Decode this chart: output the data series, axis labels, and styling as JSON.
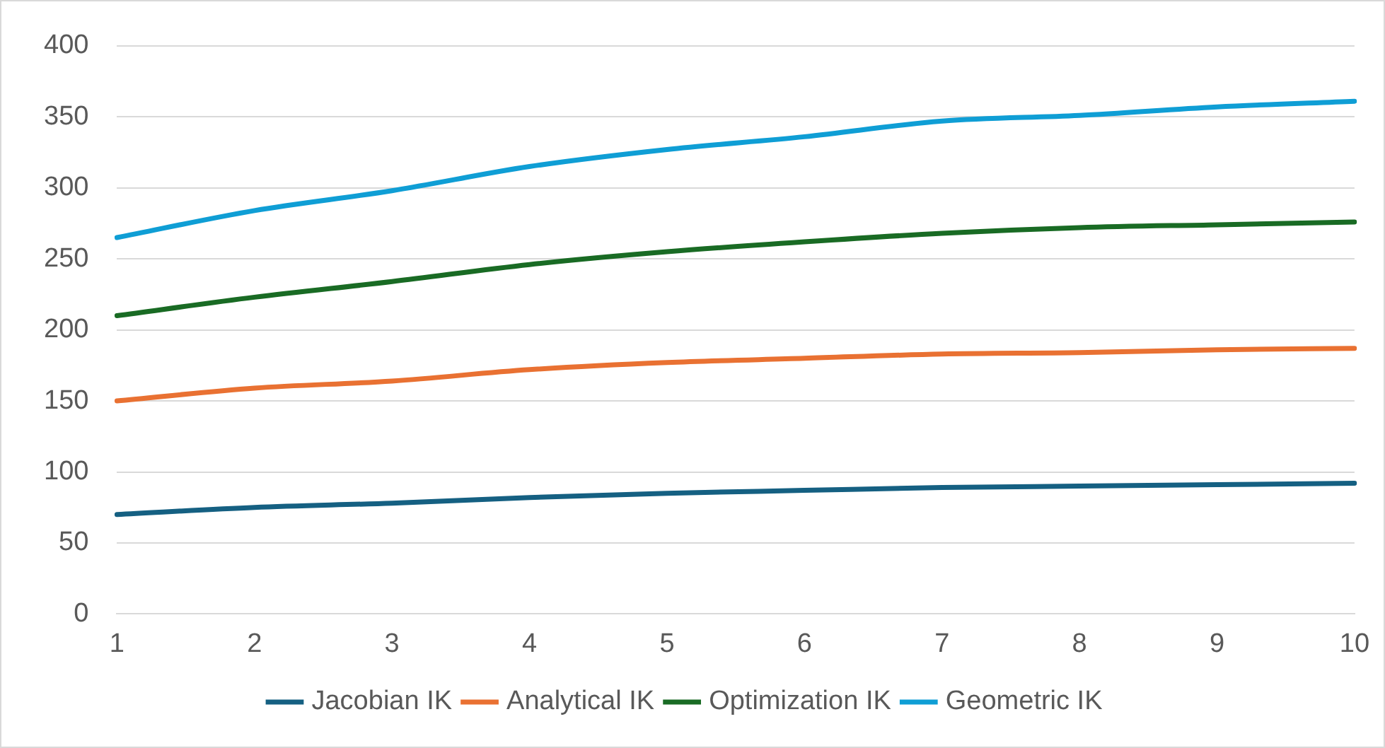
{
  "chart_data": {
    "type": "line",
    "categories": [
      "1",
      "2",
      "3",
      "4",
      "5",
      "6",
      "7",
      "8",
      "9",
      "10"
    ],
    "series": [
      {
        "name": "Jacobian IK",
        "color": "#156082",
        "values": [
          70,
          75,
          78,
          82,
          85,
          87,
          89,
          90,
          91,
          92
        ]
      },
      {
        "name": "Analytical IK",
        "color": "#e97132",
        "values": [
          150,
          159,
          164,
          172,
          177,
          180,
          183,
          184,
          186,
          187
        ]
      },
      {
        "name": "Optimization IK",
        "color": "#196b24",
        "values": [
          210,
          223,
          234,
          246,
          255,
          262,
          268,
          272,
          274,
          276
        ]
      },
      {
        "name": "Geometric IK",
        "color": "#0f9ed5",
        "values": [
          265,
          284,
          298,
          315,
          327,
          336,
          347,
          351,
          357,
          361
        ]
      }
    ],
    "ylim": [
      0,
      400
    ],
    "yticks": [
      0,
      50,
      100,
      150,
      200,
      250,
      300,
      350,
      400
    ],
    "grid": "y",
    "legend": "bottom",
    "marker": "none",
    "line_style": "solid"
  }
}
